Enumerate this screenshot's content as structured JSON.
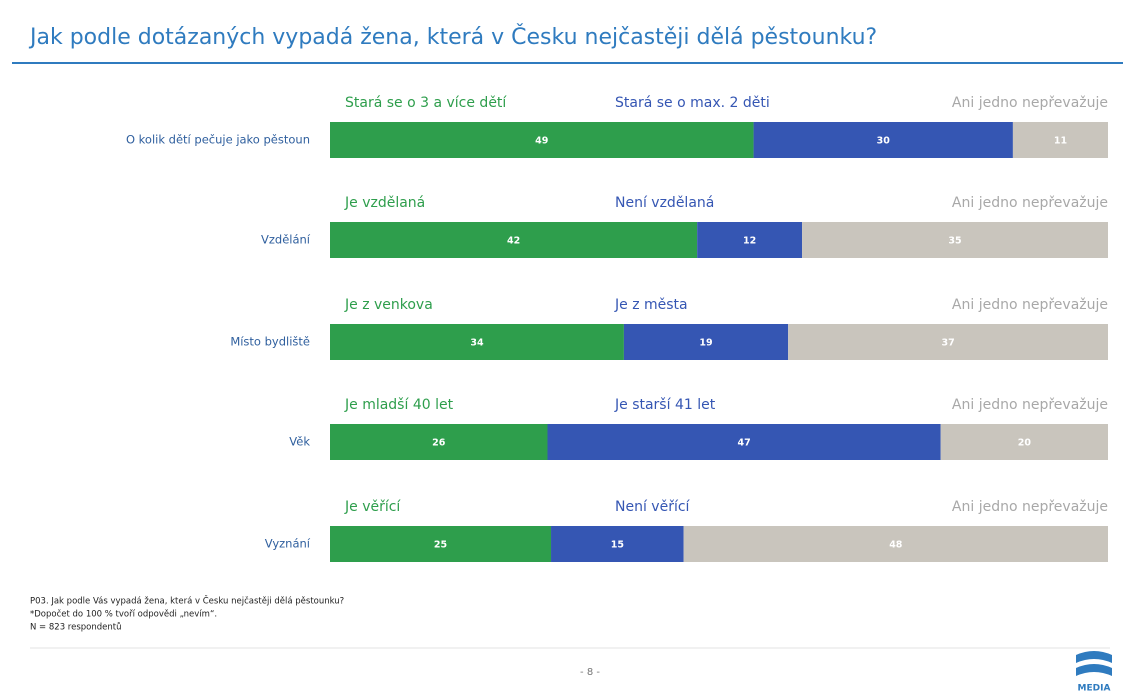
{
  "chart_data": {
    "type": "bar",
    "orientation": "horizontal",
    "stacked": true,
    "title": "Jak podle dotázaných vypadá žena, která v Česku nejčastěji dělá pěstounku?",
    "categories": [
      "O kolik dětí pečuje jako pěstoun",
      "Vzdělání",
      "Místo bydliště",
      "Věk",
      "Vyznání"
    ],
    "series": [
      {
        "color": "#2e9e4c",
        "labels": [
          "Stará se o 3 a více dětí",
          "Je vzdělaná",
          "Je z venkova",
          "Je mladší 40 let",
          "Je věřící"
        ],
        "values": [
          49,
          42,
          34,
          26,
          25
        ]
      },
      {
        "color": "#3556b3",
        "labels": [
          "Stará se o max. 2 děti",
          "Není vzdělaná",
          "Je z města",
          "Je starší 41 let",
          "Není věřící"
        ],
        "values": [
          30,
          12,
          19,
          47,
          15
        ]
      },
      {
        "color": "#c9c5bd",
        "labels": [
          "Ani jedno nepřevažuje",
          "Ani jedno nepřevažuje",
          "Ani jedno nepřevažuje",
          "Ani jedno nepřevažuje",
          "Ani jedno nepřevažuje"
        ],
        "values": [
          11,
          35,
          37,
          20,
          48
        ]
      }
    ]
  },
  "notes": [
    "P03. Jak podle Vás vypadá žena, která v Česku nejčastěji dělá pěstounku?",
    "*Dopočet do 100 % tvoří odpovědi „nevím“.",
    "N = 823 respondentů"
  ],
  "page": "- 8 -",
  "logo": "MEDIA"
}
